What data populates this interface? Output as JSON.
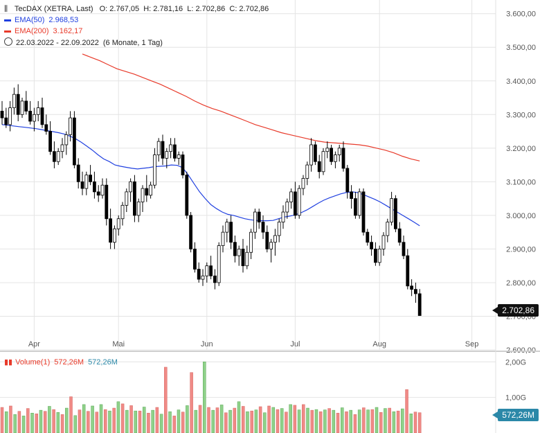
{
  "header": {
    "instrument": "TecDAX (XETRA, Last)",
    "ohlc_label": "O: 2.767,05  H: 2.781,16  L: 2.702,86  C: 2.702,86",
    "ema50_label": "EMA(50)",
    "ema50_value": "2.968,53",
    "ema200_label": "EMA(200)",
    "ema200_value": "3.162,17",
    "range": "22.03.2022 - 22.09.2022",
    "range_detail": "(6 Monate, 1 Tag)",
    "volume_label": "Volume(1)",
    "volume_value_a": "572,26M",
    "volume_value_b": "572,26M"
  },
  "tags": {
    "last_price": "2.702,86",
    "last_volume": "572,26M"
  },
  "colors": {
    "up": "#ffffff",
    "down": "#000000",
    "ema50": "#2040e0",
    "ema200": "#e83a2a",
    "vol_up": "#8fd18a",
    "vol_down": "#f08a86",
    "grid": "#e4e4e4"
  },
  "chart_data": [
    {
      "type": "candlestick",
      "title": "TecDAX (XETRA, Last)",
      "y_ticks": [
        "3.600,00",
        "3.500,00",
        "3.400,00",
        "3.300,00",
        "3.200,00",
        "3.100,00",
        "3.000,00",
        "2.900,00",
        "2.800,00",
        "2.700,00",
        "2.600,00"
      ],
      "y_tick_values": [
        3600,
        3500,
        3400,
        3300,
        3200,
        3100,
        3000,
        2900,
        2800,
        2700,
        2600
      ],
      "ylim": [
        2600,
        3620
      ],
      "x_ticks": [
        "Apr",
        "Mai",
        "Jun",
        "Jul",
        "Aug",
        "Sep"
      ],
      "x_tick_index": [
        8,
        29,
        51,
        73,
        94,
        117
      ],
      "candles": [
        [
          3310,
          3340,
          3270,
          3290
        ],
        [
          3290,
          3320,
          3260,
          3270
        ],
        [
          3270,
          3340,
          3250,
          3320
        ],
        [
          3320,
          3380,
          3300,
          3360
        ],
        [
          3360,
          3390,
          3280,
          3300
        ],
        [
          3300,
          3350,
          3290,
          3340
        ],
        [
          3340,
          3370,
          3300,
          3310
        ],
        [
          3310,
          3340,
          3270,
          3280
        ],
        [
          3280,
          3320,
          3250,
          3300
        ],
        [
          3300,
          3340,
          3280,
          3320
        ],
        [
          3320,
          3350,
          3260,
          3270
        ],
        [
          3270,
          3300,
          3240,
          3250
        ],
        [
          3250,
          3280,
          3180,
          3190
        ],
        [
          3190,
          3220,
          3140,
          3160
        ],
        [
          3160,
          3200,
          3150,
          3190
        ],
        [
          3190,
          3230,
          3170,
          3210
        ],
        [
          3210,
          3250,
          3180,
          3240
        ],
        [
          3240,
          3310,
          3220,
          3290
        ],
        [
          3290,
          3310,
          3140,
          3150
        ],
        [
          3150,
          3170,
          3080,
          3100
        ],
        [
          3100,
          3130,
          3060,
          3080
        ],
        [
          3080,
          3130,
          3060,
          3120
        ],
        [
          3120,
          3150,
          3090,
          3100
        ],
        [
          3100,
          3130,
          3050,
          3070
        ],
        [
          3070,
          3090,
          3040,
          3060
        ],
        [
          3060,
          3110,
          3050,
          3090
        ],
        [
          3090,
          3110,
          2970,
          2990
        ],
        [
          2990,
          3020,
          2900,
          2920
        ],
        [
          2920,
          2970,
          2900,
          2960
        ],
        [
          2960,
          3000,
          2940,
          2990
        ],
        [
          2990,
          3040,
          2970,
          3030
        ],
        [
          3030,
          3080,
          3010,
          3070
        ],
        [
          3070,
          3110,
          3040,
          3100
        ],
        [
          3100,
          3120,
          2980,
          3000
        ],
        [
          3000,
          3050,
          2980,
          3040
        ],
        [
          3040,
          3090,
          3010,
          3080
        ],
        [
          3080,
          3120,
          3040,
          3060
        ],
        [
          3060,
          3100,
          3050,
          3090
        ],
        [
          3090,
          3200,
          3080,
          3180
        ],
        [
          3180,
          3230,
          3160,
          3220
        ],
        [
          3220,
          3240,
          3150,
          3170
        ],
        [
          3170,
          3200,
          3140,
          3190
        ],
        [
          3190,
          3230,
          3170,
          3210
        ],
        [
          3210,
          3230,
          3160,
          3170
        ],
        [
          3170,
          3190,
          3150,
          3180
        ],
        [
          3180,
          3190,
          3110,
          3120
        ],
        [
          3120,
          3130,
          2990,
          3000
        ],
        [
          3000,
          3010,
          2890,
          2900
        ],
        [
          2900,
          2920,
          2830,
          2840
        ],
        [
          2840,
          2860,
          2800,
          2810
        ],
        [
          2810,
          2840,
          2790,
          2820
        ],
        [
          2820,
          2860,
          2800,
          2850
        ],
        [
          2850,
          2880,
          2810,
          2820
        ],
        [
          2820,
          2840,
          2780,
          2800
        ],
        [
          2800,
          2920,
          2790,
          2910
        ],
        [
          2910,
          2970,
          2890,
          2950
        ],
        [
          2950,
          2990,
          2920,
          2980
        ],
        [
          2980,
          3000,
          2900,
          2920
        ],
        [
          2920,
          2940,
          2860,
          2880
        ],
        [
          2880,
          2910,
          2850,
          2900
        ],
        [
          2900,
          2930,
          2830,
          2850
        ],
        [
          2850,
          2910,
          2840,
          2890
        ],
        [
          2890,
          2960,
          2870,
          2950
        ],
        [
          2950,
          3020,
          2930,
          3010
        ],
        [
          3010,
          3020,
          2960,
          2980
        ],
        [
          2980,
          3000,
          2930,
          2950
        ],
        [
          2950,
          2970,
          2890,
          2900
        ],
        [
          2900,
          2930,
          2860,
          2920
        ],
        [
          2920,
          2960,
          2880,
          2940
        ],
        [
          2940,
          2990,
          2920,
          2980
        ],
        [
          2980,
          3030,
          2960,
          3010
        ],
        [
          3010,
          3050,
          2990,
          3040
        ],
        [
          3040,
          3080,
          3020,
          3070
        ],
        [
          3070,
          3100,
          2990,
          3000
        ],
        [
          3000,
          3090,
          2990,
          3080
        ],
        [
          3080,
          3120,
          3060,
          3110
        ],
        [
          3110,
          3160,
          3090,
          3150
        ],
        [
          3150,
          3230,
          3130,
          3210
        ],
        [
          3210,
          3220,
          3150,
          3160
        ],
        [
          3160,
          3180,
          3110,
          3130
        ],
        [
          3130,
          3200,
          3120,
          3190
        ],
        [
          3190,
          3220,
          3170,
          3200
        ],
        [
          3200,
          3210,
          3150,
          3160
        ],
        [
          3160,
          3190,
          3140,
          3180
        ],
        [
          3180,
          3210,
          3160,
          3200
        ],
        [
          3200,
          3220,
          3130,
          3140
        ],
        [
          3140,
          3150,
          3050,
          3070
        ],
        [
          3070,
          3090,
          3020,
          3050
        ],
        [
          3050,
          3070,
          2990,
          3000
        ],
        [
          3000,
          3080,
          2990,
          3070
        ],
        [
          3070,
          3080,
          2940,
          2950
        ],
        [
          2950,
          2960,
          2910,
          2920
        ],
        [
          2920,
          2940,
          2880,
          2900
        ],
        [
          2900,
          2920,
          2850,
          2860
        ],
        [
          2860,
          2910,
          2850,
          2900
        ],
        [
          2900,
          2950,
          2880,
          2940
        ],
        [
          2940,
          2990,
          2920,
          2980
        ],
        [
          2980,
          3070,
          2970,
          3050
        ],
        [
          3050,
          3060,
          2950,
          2960
        ],
        [
          2960,
          2980,
          2910,
          2920
        ],
        [
          2920,
          2940,
          2870,
          2880
        ],
        [
          2880,
          2900,
          2780,
          2790
        ],
        [
          2790,
          2810,
          2760,
          2780
        ],
        [
          2780,
          2800,
          2740,
          2767
        ],
        [
          2767,
          2781,
          2702,
          2702
        ]
      ],
      "ema50": [
        3270,
        3268,
        3266,
        3264,
        3262,
        3260,
        3258,
        3255,
        3252,
        3249,
        3246,
        3242,
        3236,
        3228,
        3218,
        3206,
        3194,
        3180,
        3168,
        3160,
        3150,
        3146,
        3143,
        3140,
        3138,
        3140,
        3142,
        3145,
        3146,
        3147,
        3150,
        3149,
        3142,
        3120,
        3095,
        3070,
        3050,
        3032,
        3020,
        3010,
        3003,
        3000,
        2995,
        2990,
        2987,
        2985,
        2984,
        2984,
        2985,
        2990,
        2995,
        2998,
        3002,
        3008,
        3016,
        3026,
        3036,
        3045,
        3052,
        3058,
        3064,
        3068,
        3070,
        3068,
        3062,
        3055,
        3048,
        3040,
        3030,
        3020,
        3010,
        3000,
        2990,
        2980,
        2969
      ],
      "ema200": [
        3480,
        3470,
        3460,
        3448,
        3436,
        3428,
        3420,
        3410,
        3400,
        3390,
        3378,
        3366,
        3354,
        3340,
        3328,
        3318,
        3310,
        3300,
        3290,
        3280,
        3270,
        3262,
        3254,
        3246,
        3240,
        3234,
        3228,
        3222,
        3218,
        3216,
        3214,
        3212,
        3210,
        3206,
        3200,
        3194,
        3186,
        3176,
        3168,
        3162
      ]
    },
    {
      "type": "bar",
      "title": "Volume(1)",
      "y_ticks": [
        "2,00G",
        "1,00G"
      ],
      "y_tick_values": [
        2000,
        1000
      ],
      "ylim": [
        0,
        2200
      ],
      "values": [
        [
          720,
          0
        ],
        [
          600,
          1
        ],
        [
          760,
          0
        ],
        [
          520,
          1
        ],
        [
          610,
          0
        ],
        [
          480,
          1
        ],
        [
          690,
          0
        ],
        [
          560,
          1
        ],
        [
          540,
          0
        ],
        [
          640,
          1
        ],
        [
          610,
          0
        ],
        [
          750,
          1
        ],
        [
          660,
          0
        ],
        [
          580,
          1
        ],
        [
          520,
          0
        ],
        [
          700,
          1
        ],
        [
          1020,
          0
        ],
        [
          490,
          1
        ],
        [
          650,
          0
        ],
        [
          800,
          1
        ],
        [
          610,
          0
        ],
        [
          760,
          1
        ],
        [
          590,
          0
        ],
        [
          800,
          1
        ],
        [
          660,
          0
        ],
        [
          620,
          1
        ],
        [
          700,
          0
        ],
        [
          880,
          1
        ],
        [
          820,
          0
        ],
        [
          640,
          1
        ],
        [
          770,
          0
        ],
        [
          620,
          1
        ],
        [
          620,
          0
        ],
        [
          730,
          1
        ],
        [
          560,
          0
        ],
        [
          640,
          1
        ],
        [
          720,
          0
        ],
        [
          530,
          1
        ],
        [
          1850,
          0
        ],
        [
          600,
          1
        ],
        [
          480,
          0
        ],
        [
          650,
          1
        ],
        [
          590,
          0
        ],
        [
          770,
          1
        ],
        [
          1700,
          0
        ],
        [
          640,
          1
        ],
        [
          780,
          0
        ],
        [
          2000,
          1
        ],
        [
          720,
          0
        ],
        [
          640,
          1
        ],
        [
          710,
          0
        ],
        [
          790,
          1
        ],
        [
          570,
          0
        ],
        [
          640,
          1
        ],
        [
          700,
          0
        ],
        [
          880,
          1
        ],
        [
          750,
          0
        ],
        [
          600,
          1
        ],
        [
          620,
          0
        ],
        [
          650,
          1
        ],
        [
          740,
          0
        ],
        [
          570,
          1
        ],
        [
          760,
          0
        ],
        [
          720,
          1
        ],
        [
          660,
          0
        ],
        [
          690,
          1
        ],
        [
          590,
          0
        ],
        [
          800,
          1
        ],
        [
          780,
          0
        ],
        [
          650,
          1
        ],
        [
          800,
          0
        ],
        [
          700,
          1
        ],
        [
          640,
          0
        ],
        [
          660,
          1
        ],
        [
          600,
          0
        ],
        [
          650,
          1
        ],
        [
          690,
          0
        ],
        [
          640,
          1
        ],
        [
          560,
          0
        ],
        [
          710,
          1
        ],
        [
          600,
          0
        ],
        [
          640,
          1
        ],
        [
          520,
          0
        ],
        [
          650,
          1
        ],
        [
          710,
          0
        ],
        [
          650,
          1
        ],
        [
          660,
          0
        ],
        [
          720,
          1
        ],
        [
          580,
          0
        ],
        [
          690,
          1
        ],
        [
          700,
          0
        ],
        [
          600,
          1
        ],
        [
          620,
          0
        ],
        [
          680,
          1
        ],
        [
          1220,
          0
        ],
        [
          540,
          1
        ],
        [
          590,
          0
        ],
        [
          572,
          0
        ]
      ]
    }
  ]
}
